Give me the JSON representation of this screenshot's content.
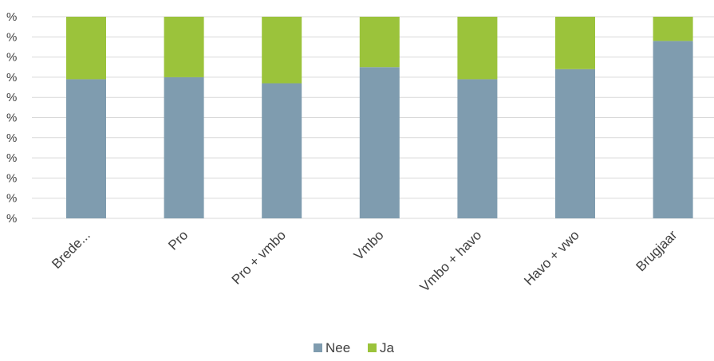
{
  "chart_data": {
    "type": "bar",
    "stacked": true,
    "percent_stacked": true,
    "categories": [
      "Brede...",
      "Pro",
      "Pro + vmbo",
      "Vmbo",
      "Vmbo + havo",
      "Havo + vwo",
      "Brugjaar"
    ],
    "series": [
      {
        "name": "Nee",
        "color": "#7f9caf",
        "values": [
          69,
          70,
          67,
          75,
          69,
          74,
          88
        ]
      },
      {
        "name": "Ja",
        "color": "#9bc33b",
        "values": [
          31,
          30,
          33,
          25,
          31,
          26,
          12
        ]
      }
    ],
    "y_tick_labels": [
      "%",
      "%",
      "%",
      "%",
      "%",
      "%",
      "%",
      "%",
      "%",
      "%",
      "%"
    ],
    "ylim": [
      0,
      100
    ],
    "grid": true,
    "legend": {
      "position": "bottom",
      "entries": [
        "Nee",
        "Ja"
      ]
    },
    "title": "",
    "xlabel": "",
    "ylabel": ""
  }
}
